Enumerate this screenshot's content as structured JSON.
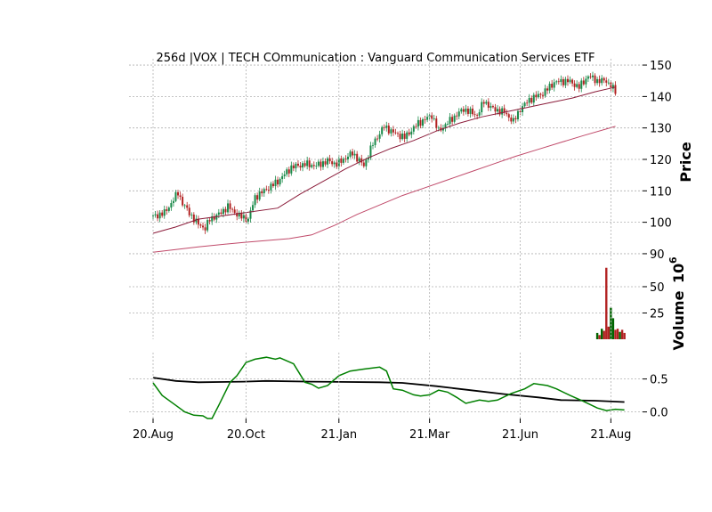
{
  "chart_data": {
    "type": "candlestick",
    "title": "256d |VOX | TECH COmmunication : Vanguard Communication Services ETF",
    "x_tick_labels": [
      "20.Aug",
      "20.Oct",
      "21.Jan",
      "21.Mar",
      "21.Jun",
      "21.Aug"
    ],
    "x_tick_days": [
      0,
      41,
      82,
      122,
      162,
      202
    ],
    "x_range_days": [
      0,
      205
    ],
    "colors": {
      "up": "#1a8a4a",
      "down": "#b22222",
      "ma_fast": "#8b1c3a",
      "ma_slow": "#c04a6a",
      "osc_line": "#008000",
      "osc_signal": "#000000",
      "volume_up": "#006400",
      "volume_down": "#b22222"
    },
    "price_panel": {
      "ylabel": "Price",
      "ylim": [
        88,
        152
      ],
      "yticks": [
        90,
        100,
        110,
        120,
        130,
        140,
        150
      ],
      "close_series": [
        [
          0,
          101.8
        ],
        [
          5,
          103
        ],
        [
          8,
          106
        ],
        [
          11,
          109.5
        ],
        [
          13,
          106
        ],
        [
          16,
          103
        ],
        [
          19,
          100
        ],
        [
          23,
          98
        ],
        [
          25,
          101
        ],
        [
          29,
          102.5
        ],
        [
          33,
          105
        ],
        [
          38,
          102
        ],
        [
          42,
          101
        ],
        [
          45,
          108
        ],
        [
          50,
          110.5
        ],
        [
          55,
          113
        ],
        [
          61,
          117.5
        ],
        [
          67,
          118.5
        ],
        [
          72,
          118
        ],
        [
          77,
          119.5
        ],
        [
          81,
          118.5
        ],
        [
          88,
          122
        ],
        [
          93,
          118
        ],
        [
          97,
          125
        ],
        [
          102,
          130.5
        ],
        [
          106,
          128.5
        ],
        [
          111,
          127
        ],
        [
          117,
          131.5
        ],
        [
          123,
          134
        ],
        [
          126,
          129
        ],
        [
          132,
          133
        ],
        [
          137,
          136
        ],
        [
          143,
          134
        ],
        [
          146,
          138.5
        ],
        [
          150,
          136
        ],
        [
          155,
          135
        ],
        [
          159,
          132
        ],
        [
          162,
          136
        ],
        [
          166,
          139
        ],
        [
          172,
          141
        ],
        [
          177,
          144.5
        ],
        [
          183,
          145
        ],
        [
          188,
          143
        ],
        [
          192,
          146.5
        ],
        [
          196,
          145
        ],
        [
          200,
          145
        ],
        [
          204,
          141.5
        ]
      ],
      "ma_fast": [
        [
          0,
          96.5
        ],
        [
          10,
          98.5
        ],
        [
          20,
          101
        ],
        [
          30,
          102
        ],
        [
          40,
          103
        ],
        [
          55,
          104.5
        ],
        [
          65,
          109
        ],
        [
          75,
          113
        ],
        [
          85,
          117
        ],
        [
          95,
          120.5
        ],
        [
          105,
          123.5
        ],
        [
          115,
          126
        ],
        [
          125,
          129
        ],
        [
          135,
          131.5
        ],
        [
          145,
          133.5
        ],
        [
          155,
          135
        ],
        [
          165,
          136.5
        ],
        [
          175,
          138
        ],
        [
          185,
          139.5
        ],
        [
          195,
          141.5
        ],
        [
          204,
          143
        ]
      ],
      "ma_slow": [
        [
          0,
          90.5
        ],
        [
          20,
          92.2
        ],
        [
          40,
          93.6
        ],
        [
          60,
          94.8
        ],
        [
          70,
          96
        ],
        [
          80,
          99
        ],
        [
          90,
          102.5
        ],
        [
          100,
          105.5
        ],
        [
          110,
          108.5
        ],
        [
          120,
          111
        ],
        [
          130,
          113.5
        ],
        [
          140,
          116
        ],
        [
          150,
          118.5
        ],
        [
          160,
          121
        ],
        [
          170,
          123.2
        ],
        [
          180,
          125.4
        ],
        [
          190,
          127.6
        ],
        [
          204,
          130.5
        ]
      ]
    },
    "volume_panel": {
      "ylabel": "Volume",
      "scale_label": "10",
      "scale_exponent": "6",
      "ylim": [
        0,
        72
      ],
      "yticks": [
        25,
        50
      ],
      "bars": [
        [
          196,
          6,
          "up"
        ],
        [
          197,
          4,
          "down"
        ],
        [
          198,
          10,
          "up"
        ],
        [
          199,
          8,
          "down"
        ],
        [
          200,
          68,
          "down"
        ],
        [
          201,
          12,
          "down"
        ],
        [
          202,
          30,
          "up"
        ],
        [
          203,
          20,
          "up"
        ],
        [
          204,
          9,
          "down"
        ],
        [
          205,
          10,
          "down"
        ],
        [
          206,
          7,
          "up"
        ],
        [
          207,
          9,
          "down"
        ],
        [
          208,
          6,
          "down"
        ]
      ]
    },
    "oscillator_panel": {
      "ylim": [
        -0.1,
        0.9
      ],
      "yticks": [
        0.0,
        0.5
      ],
      "ytick_labels": [
        "0.0",
        "0.5"
      ],
      "line": [
        [
          0,
          0.44
        ],
        [
          4,
          0.25
        ],
        [
          10,
          0.1
        ],
        [
          14,
          0.0
        ],
        [
          18,
          -0.05
        ],
        [
          22,
          -0.06
        ],
        [
          24,
          -0.1
        ],
        [
          26,
          -0.1
        ],
        [
          29,
          0.1
        ],
        [
          34,
          0.45
        ],
        [
          37,
          0.55
        ],
        [
          41,
          0.75
        ],
        [
          45,
          0.8
        ],
        [
          50,
          0.83
        ],
        [
          54,
          0.8
        ],
        [
          56,
          0.82
        ],
        [
          62,
          0.73
        ],
        [
          67,
          0.45
        ],
        [
          70,
          0.42
        ],
        [
          73,
          0.36
        ],
        [
          77,
          0.4
        ],
        [
          82,
          0.55
        ],
        [
          87,
          0.62
        ],
        [
          93,
          0.65
        ],
        [
          100,
          0.68
        ],
        [
          103,
          0.62
        ],
        [
          106,
          0.35
        ],
        [
          110,
          0.33
        ],
        [
          115,
          0.26
        ],
        [
          118,
          0.24
        ],
        [
          122,
          0.26
        ],
        [
          126,
          0.33
        ],
        [
          130,
          0.3
        ],
        [
          134,
          0.22
        ],
        [
          138,
          0.13
        ],
        [
          144,
          0.18
        ],
        [
          148,
          0.16
        ],
        [
          152,
          0.18
        ],
        [
          158,
          0.28
        ],
        [
          164,
          0.35
        ],
        [
          168,
          0.43
        ],
        [
          174,
          0.4
        ],
        [
          178,
          0.35
        ],
        [
          184,
          0.25
        ],
        [
          190,
          0.16
        ],
        [
          196,
          0.06
        ],
        [
          200,
          0.02
        ],
        [
          204,
          0.04
        ],
        [
          208,
          0.03
        ]
      ],
      "signal": [
        [
          0,
          0.52
        ],
        [
          10,
          0.47
        ],
        [
          20,
          0.45
        ],
        [
          40,
          0.46
        ],
        [
          50,
          0.47
        ],
        [
          70,
          0.46
        ],
        [
          100,
          0.45
        ],
        [
          110,
          0.44
        ],
        [
          125,
          0.39
        ],
        [
          140,
          0.33
        ],
        [
          155,
          0.27
        ],
        [
          170,
          0.22
        ],
        [
          180,
          0.18
        ],
        [
          195,
          0.17
        ],
        [
          208,
          0.15
        ]
      ]
    }
  }
}
